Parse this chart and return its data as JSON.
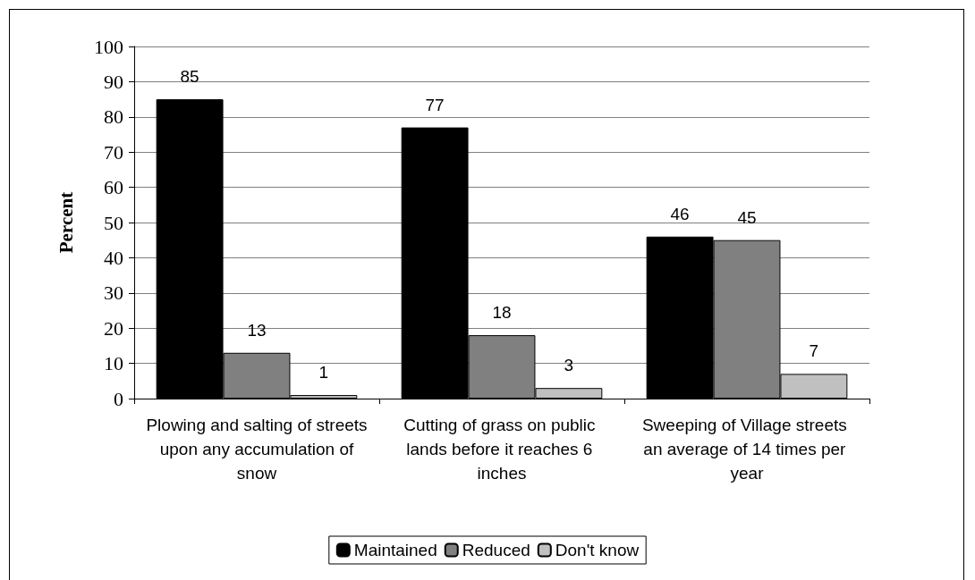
{
  "chart_data": {
    "type": "bar",
    "ylabel": "Percent",
    "categories": [
      "Plowing and salting of streets upon any accumulation of snow",
      "Cutting of grass on public lands before it reaches 6 inches",
      "Sweeping of Village streets an average of 14 times per year"
    ],
    "series": [
      {
        "name": "Maintained",
        "color": "#000000",
        "values": [
          85,
          77,
          46
        ]
      },
      {
        "name": "Reduced",
        "color": "#808080",
        "values": [
          13,
          18,
          45
        ]
      },
      {
        "name": "Don't know",
        "color": "#c0c0c0",
        "values": [
          1,
          3,
          7
        ]
      }
    ],
    "ylim": [
      0,
      100
    ],
    "yticks": [
      0,
      10,
      20,
      30,
      40,
      50,
      60,
      70,
      80,
      90,
      100
    ],
    "grid": "y",
    "legend": "bottom",
    "data_labels": true
  }
}
